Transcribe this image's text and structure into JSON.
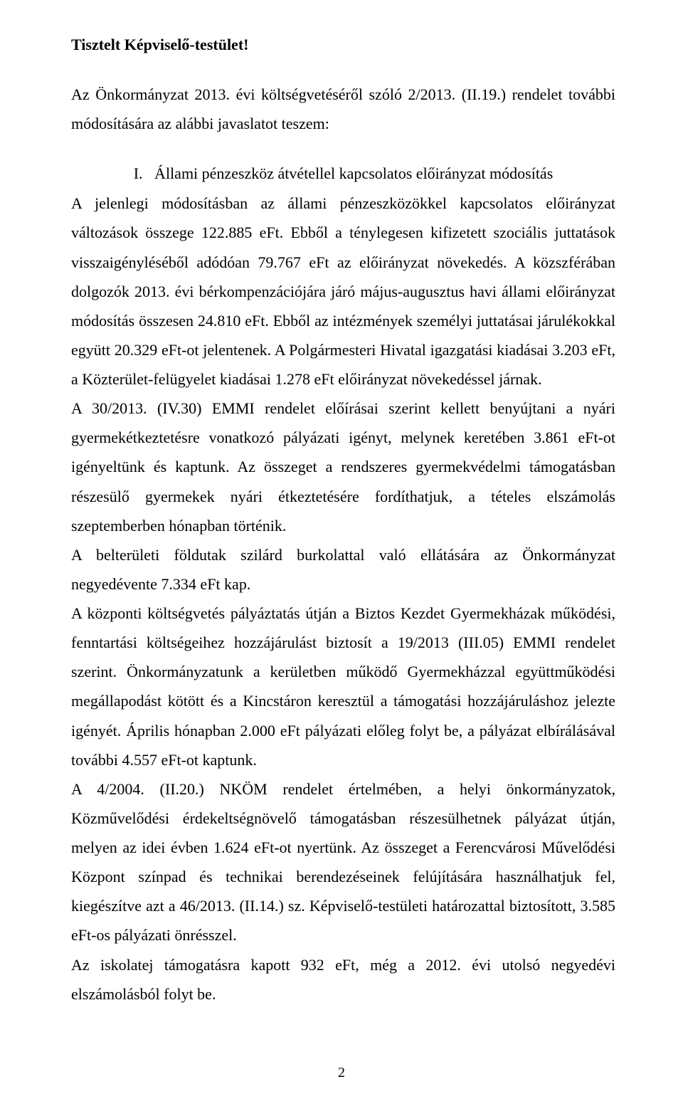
{
  "text_color": "#000000",
  "background_color": "#ffffff",
  "font_family": "Times New Roman",
  "base_font_size_pt": 16,
  "heading": "Tisztelt Képviselő-testület!",
  "intro": "Az Önkormányzat 2013. évi költségvetéséről szóló 2/2013. (II.19.) rendelet további módosítására az alábbi javaslatot teszem:",
  "section_marker": "I.   Állami pénzeszköz átvétellel kapcsolatos előirányzat módosítás",
  "paragraphs": [
    "A jelenlegi módosításban az állami pénzeszközökkel kapcsolatos előirányzat változások összege 122.885 eFt. Ebből a ténylegesen kifizetett szociális juttatások visszaigényléséből adódóan 79.767 eFt az előirányzat növekedés.  A közszférában dolgozók 2013. évi bérkompenzációjára járó május-augusztus havi állami előirányzat módosítás összesen 24.810 eFt. Ebből az intézmények személyi juttatásai járulékokkal együtt 20.329 eFt-ot jelentenek. A Polgármesteri Hivatal igazgatási kiadásai 3.203 eFt, a Közterület-felügyelet kiadásai 1.278 eFt előirányzat növekedéssel járnak.",
    "A 30/2013. (IV.30) EMMI rendelet előírásai szerint kellett benyújtani a nyári gyermekétkeztetésre vonatkozó pályázati igényt, melynek keretében 3.861 eFt-ot igényeltünk és kaptunk. Az összeget a rendszeres gyermekvédelmi támogatásban részesülő gyermekek nyári étkeztetésére fordíthatjuk, a tételes elszámolás szeptemberben hónapban történik.",
    "A belterületi földutak szilárd burkolattal való ellátására az Önkormányzat negyedévente 7.334 eFt kap.",
    "A központi költségvetés pályáztatás útján a Biztos Kezdet Gyermekházak működési, fenntartási költségeihez hozzájárulást biztosít a 19/2013 (III.05) EMMI rendelet szerint. Önkormányzatunk a kerületben működő Gyermekházzal együttműködési megállapodást kötött és a Kincstáron keresztül a támogatási hozzájáruláshoz jelezte igényét. Április hónapban  2.000 eFt  pályázati előleg folyt be, a pályázat elbírálásával további 4.557 eFt-ot kaptunk.",
    "A 4/2004. (II.20.) NKÖM rendelet értelmében, a helyi önkormányzatok, Közművelődési érdekeltségnövelő támogatásban részesülhetnek pályázat útján, melyen az idei évben 1.624 eFt-ot nyertünk.  Az összeget a Ferencvárosi Művelődési Központ színpad és technikai berendezéseinek felújítására használhatjuk fel, kiegészítve azt a   46/2013.  (II.14.)  sz. Képviselő-testületi határozattal biztosított, 3.585 eFt-os pályázati önrésszel.",
    "Az iskolatej támogatásra kapott 932 eFt, még a 2012. évi utolsó negyedévi elszámolásból folyt be."
  ],
  "page_number": "2"
}
